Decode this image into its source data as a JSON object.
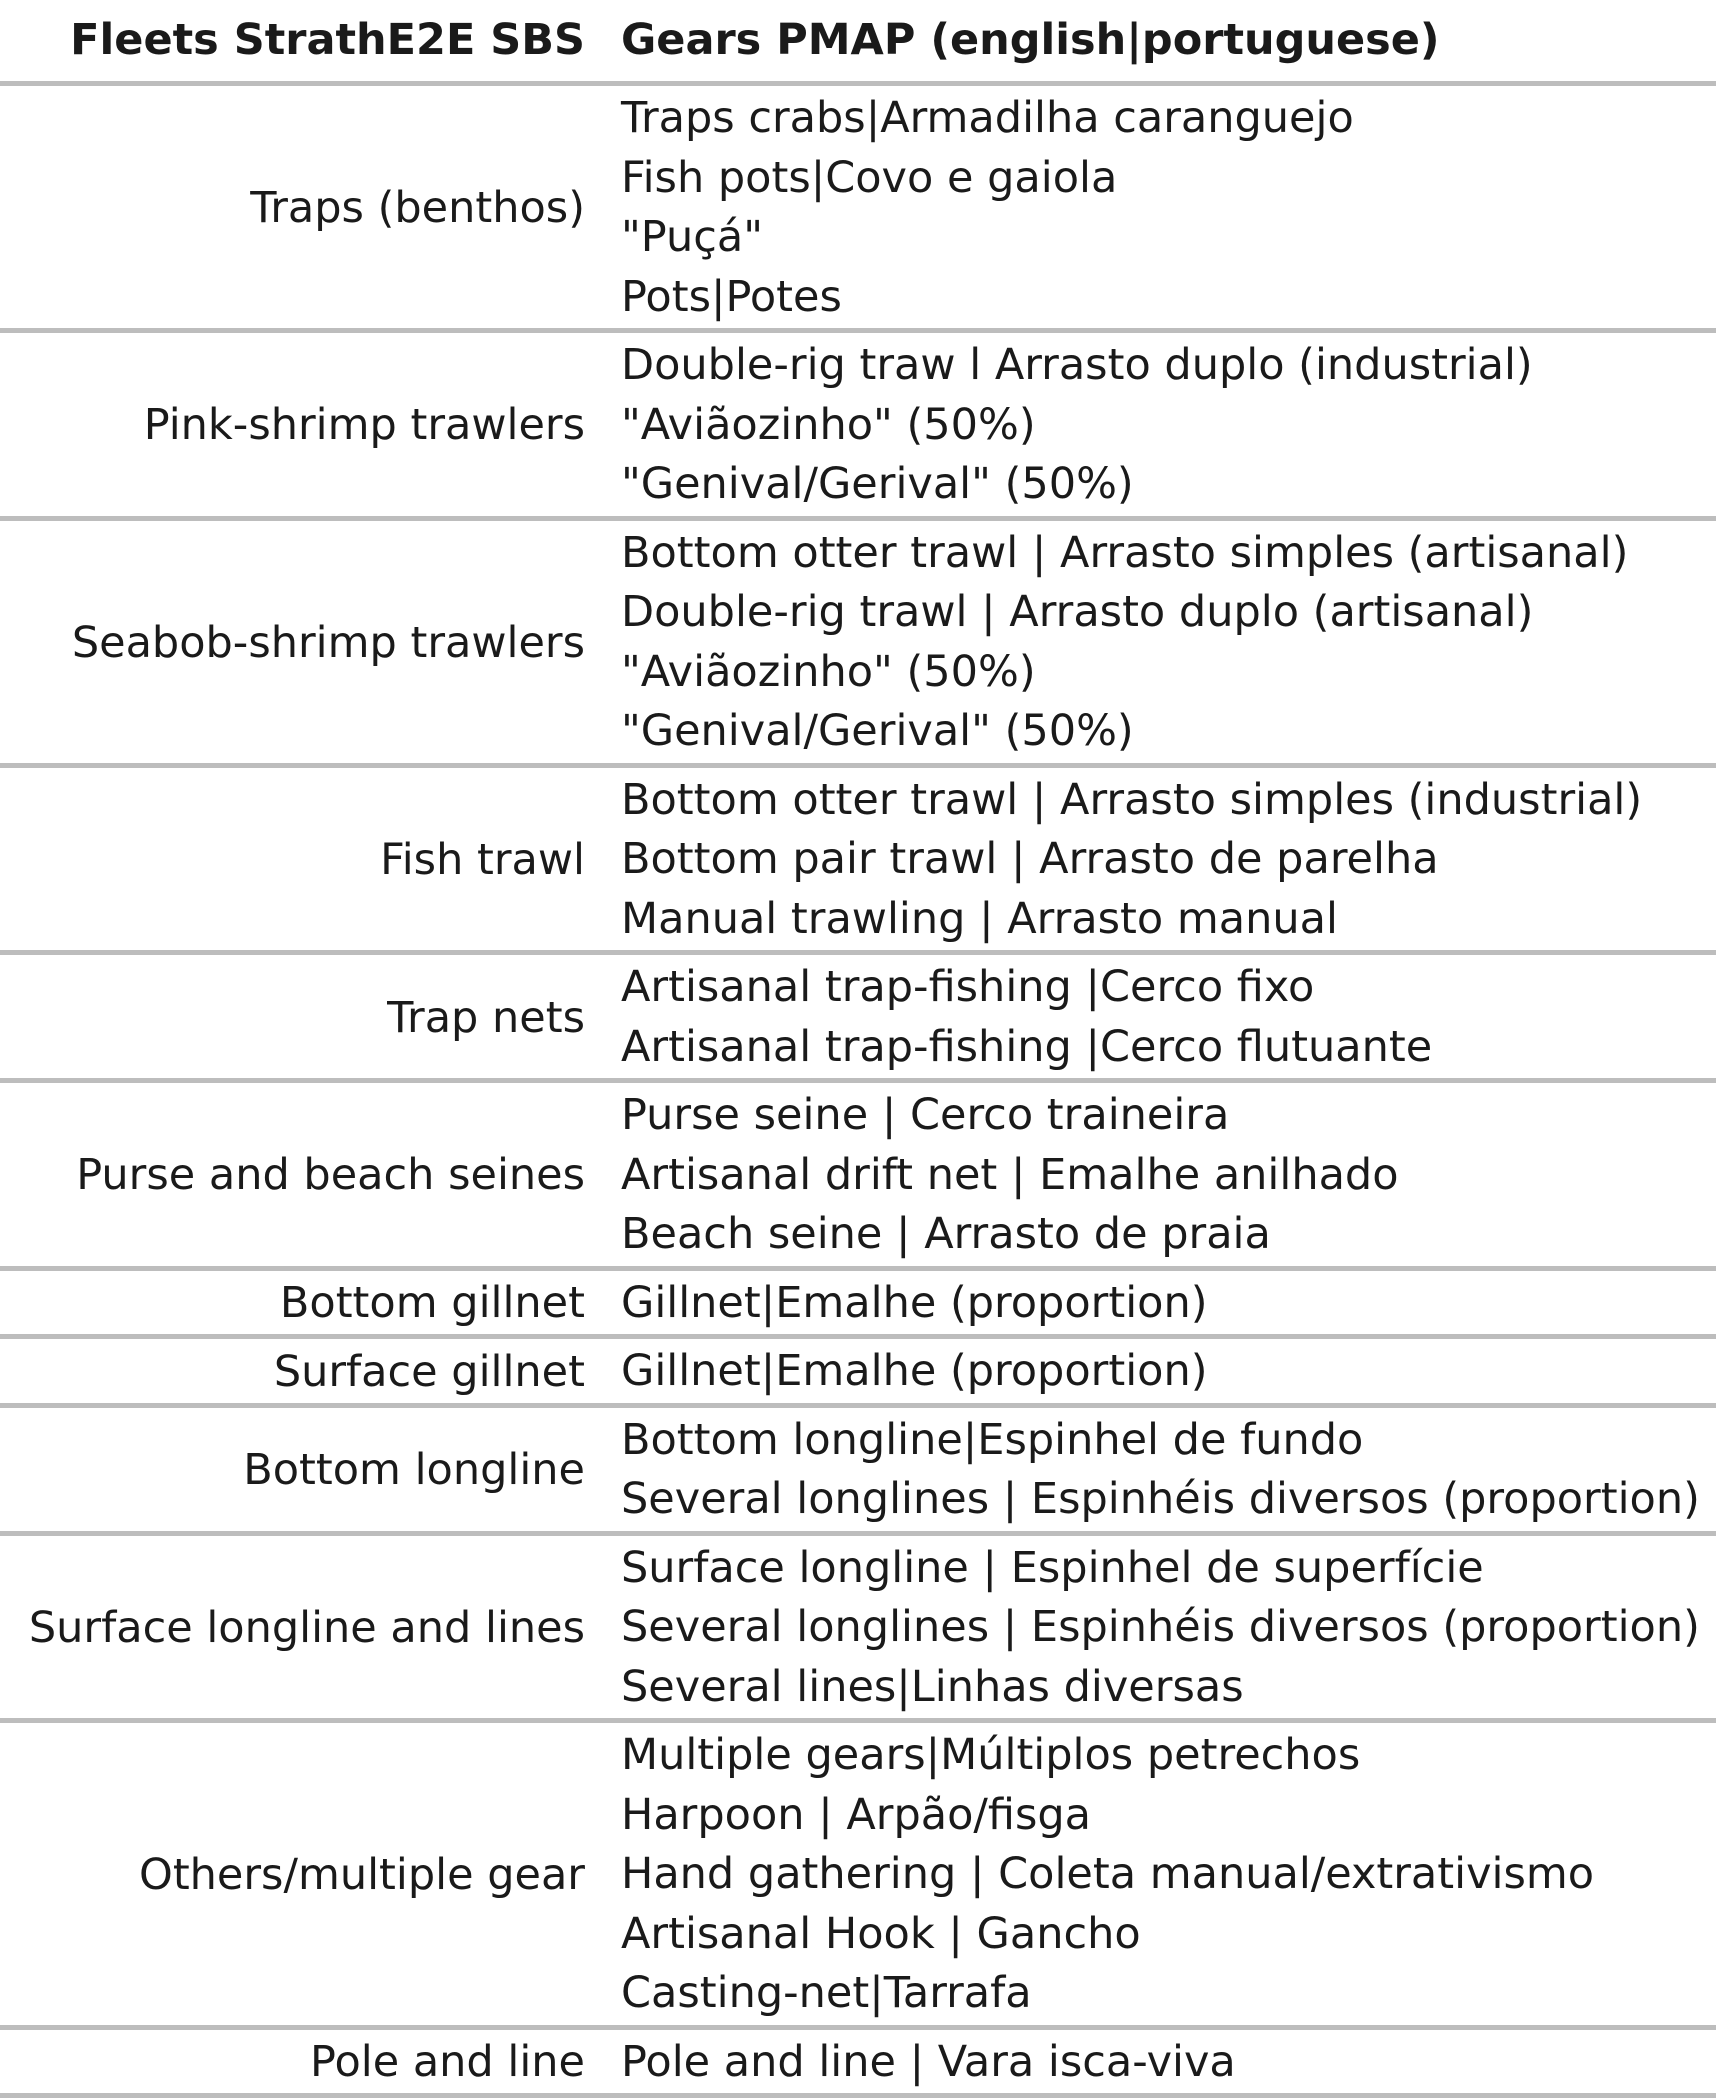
{
  "header": {
    "fleets_label": "Fleets StrathE2E SBS",
    "gears_label": "Gears PMAP (english|portuguese)"
  },
  "rows": [
    {
      "fleet": "Traps (benthos)",
      "gears": [
        "Traps crabs|Armadilha caranguejo",
        "Fish pots|Covo e gaiola",
        "\"Puçá\"",
        "Pots|Potes"
      ]
    },
    {
      "fleet": "Pink-shrimp trawlers",
      "gears": [
        "Double-rig traw l Arrasto duplo (industrial)",
        "\"Aviãozinho\" (50%)",
        "\"Genival/Gerival\" (50%)"
      ]
    },
    {
      "fleet": "Seabob-shrimp trawlers",
      "gears": [
        "Bottom otter trawl | Arrasto simples (artisanal)",
        "Double-rig trawl | Arrasto duplo (artisanal)",
        "\"Aviãozinho\" (50%)",
        "\"Genival/Gerival\" (50%)"
      ]
    },
    {
      "fleet": "Fish trawl",
      "gears": [
        "Bottom otter trawl | Arrasto simples (industrial)",
        "Bottom pair trawl | Arrasto de parelha",
        "Manual trawling | Arrasto manual"
      ]
    },
    {
      "fleet": "Trap nets",
      "gears": [
        "Artisanal trap-fishing |Cerco fixo",
        "Artisanal trap-fishing |Cerco flutuante"
      ]
    },
    {
      "fleet": "Purse and beach seines",
      "gears": [
        "Purse seine | Cerco traineira",
        "Artisanal drift net | Emalhe anilhado",
        "Beach seine | Arrasto de praia"
      ]
    },
    {
      "fleet": "Bottom gillnet",
      "gears": [
        "Gillnet|Emalhe (proportion)"
      ]
    },
    {
      "fleet": "Surface gillnet",
      "gears": [
        "Gillnet|Emalhe (proportion)"
      ]
    },
    {
      "fleet": "Bottom longline",
      "gears": [
        "Bottom longline|Espinhel de fundo",
        "Several longlines | Espinhéis diversos (proportion)"
      ]
    },
    {
      "fleet": "Surface longline and lines",
      "gears": [
        "Surface longline | Espinhel de superfície",
        "Several longlines | Espinhéis diversos (proportion)",
        "Several lines|Linhas diversas"
      ]
    },
    {
      "fleet": "Others/multiple gear",
      "gears": [
        "Multiple gears|Múltiplos petrechos",
        "Harpoon | Arpão/fisga",
        "Hand gathering | Coleta manual/extrativismo",
        "Artisanal Hook | Gancho",
        "Casting-net|Tarrafa"
      ]
    },
    {
      "fleet": "Pole and line",
      "gears": [
        "Pole and line | Vara isca-viva"
      ]
    }
  ]
}
